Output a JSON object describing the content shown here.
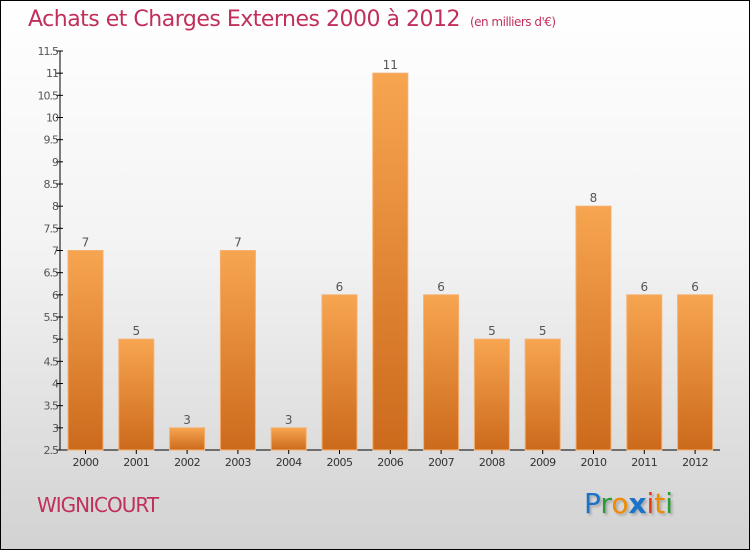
{
  "title": "Achats et Charges Externes 2000 à 2012",
  "subtitle": "(en milliers d'€)",
  "city": "WIGNICOURT",
  "logo": "Proxiti",
  "colors": {
    "bar_top": "#f7a550",
    "bar_bottom": "#cc6a1c",
    "title": "#c0305a"
  },
  "chart_data": {
    "type": "bar",
    "title": "Achats et Charges Externes 2000 à 2012",
    "categories": [
      "2000",
      "2001",
      "2002",
      "2003",
      "2004",
      "2005",
      "2006",
      "2007",
      "2008",
      "2009",
      "2010",
      "2011",
      "2012"
    ],
    "values": [
      7,
      5,
      3,
      7,
      3,
      6,
      11,
      6,
      5,
      5,
      8,
      6,
      6
    ],
    "ylim": [
      2.5,
      11.5
    ],
    "yticks": [
      "2.5",
      "3",
      "3.5",
      "4",
      "4.5",
      "5",
      "5.5",
      "6",
      "6.5",
      "7",
      "7.5",
      "8",
      "8.5",
      "9",
      "9.5",
      "10",
      "10.5",
      "11",
      "11.5"
    ],
    "xlabel": "",
    "ylabel": "",
    "grid": false
  }
}
